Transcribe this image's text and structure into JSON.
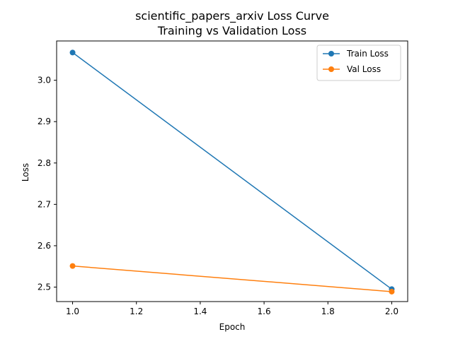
{
  "chart_data": {
    "type": "line",
    "title": "scientific_papers_arxiv Loss Curve",
    "subtitle": "Training vs Validation Loss",
    "xlabel": "Epoch",
    "ylabel": "Loss",
    "xlim": [
      0.95,
      2.05
    ],
    "ylim": [
      2.465,
      3.095
    ],
    "xticks": [
      1.0,
      1.2,
      1.4,
      1.6,
      1.8,
      2.0
    ],
    "xtick_labels": [
      "1.0",
      "1.2",
      "1.4",
      "1.6",
      "1.8",
      "2.0"
    ],
    "yticks": [
      2.5,
      2.6,
      2.7,
      2.8,
      2.9,
      3.0
    ],
    "ytick_labels": [
      "2.5",
      "2.6",
      "2.7",
      "2.8",
      "2.9",
      "3.0"
    ],
    "grid": false,
    "legend_position": "top-right",
    "series": [
      {
        "name": "Train Loss",
        "color": "#1f77b4",
        "marker": "circle",
        "x": [
          1.0,
          2.0
        ],
        "y": [
          3.067,
          2.495
        ]
      },
      {
        "name": "Val Loss",
        "color": "#ff7f0e",
        "marker": "circle",
        "x": [
          1.0,
          2.0
        ],
        "y": [
          2.551,
          2.489
        ]
      }
    ]
  }
}
